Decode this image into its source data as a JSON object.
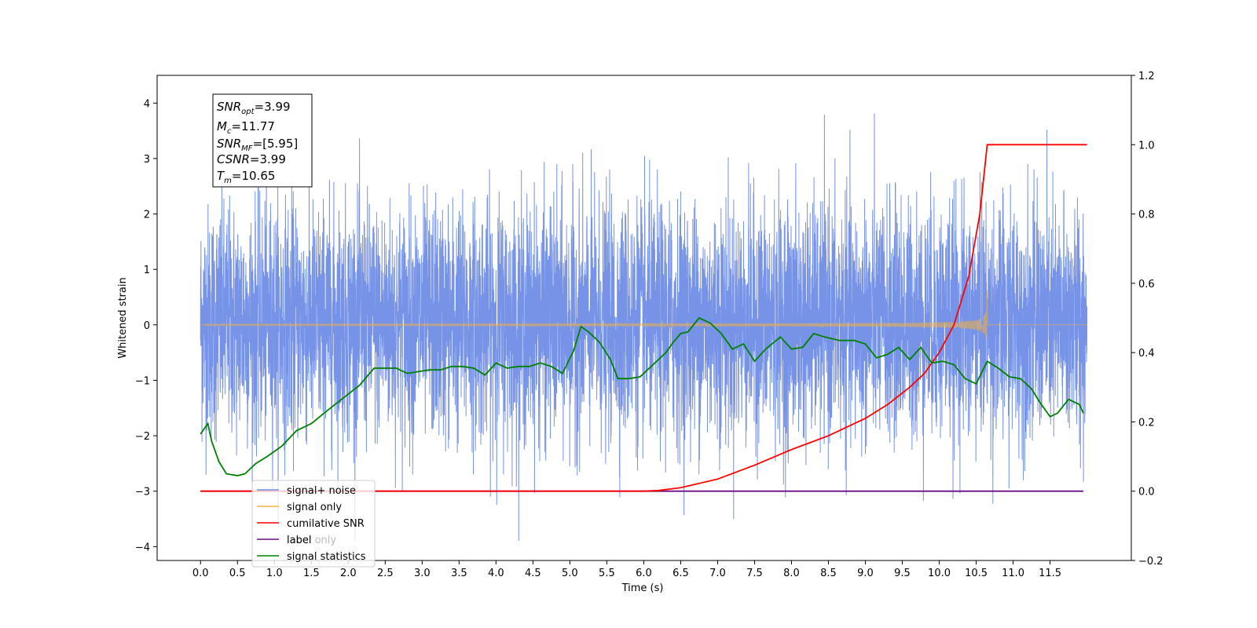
{
  "chart_data": {
    "type": "line",
    "title": "",
    "xlabel": "Time (s)",
    "ylabel_left": "Whitened strain",
    "ylabel_right": "",
    "xlim": [
      -0.5875,
      12.6
    ],
    "ylim_left": [
      -4.25,
      4.5
    ],
    "ylim_right": [
      -0.2,
      1.2
    ],
    "x_ticks": [
      0.0,
      0.5,
      1.0,
      1.5,
      2.0,
      2.5,
      3.0,
      3.5,
      4.0,
      4.5,
      5.0,
      5.5,
      6.0,
      6.5,
      7.0,
      7.5,
      8.0,
      8.5,
      9.0,
      9.5,
      10.0,
      10.5,
      11.0,
      11.5
    ],
    "x_tick_labels": [
      "0.0",
      "0.5",
      "1.0",
      "1.5",
      "2.0",
      "2.5",
      "3.0",
      "3.5",
      "4.0",
      "4.5",
      "5.0",
      "5.5",
      "6.0",
      "6.5",
      "7.0",
      "7.5",
      "8.0",
      "8.5",
      "9.0",
      "9.5",
      "10.0",
      "10.5",
      "11.0",
      "11.5"
    ],
    "y_left_ticks": [
      -4,
      -3,
      -2,
      -1,
      0,
      1,
      2,
      3,
      4
    ],
    "y_left_tick_labels": [
      "−4",
      "−3",
      "−2",
      "−1",
      "0",
      "1",
      "2",
      "3",
      "4"
    ],
    "y_right_ticks": [
      -0.2,
      0.0,
      0.2,
      0.4,
      0.6,
      0.8,
      1.0,
      1.2
    ],
    "y_right_tick_labels": [
      "−0.2",
      "0.0",
      "0.2",
      "0.4",
      "0.6",
      "0.8",
      "1.0",
      "1.2"
    ],
    "grid": false,
    "legend_position": "lower-left",
    "stats_box": {
      "snr_opt": "=3.99",
      "mc": "=11.77",
      "snr_mf": "=[5.95]",
      "csnr": "=3.99",
      "tm": "=10.65"
    },
    "series": [
      {
        "name": "signal+ noise",
        "axis": "left",
        "color": "#6f8de6",
        "x_range": [
          0.0,
          12.0
        ],
        "amplitude_range": [
          -3.9,
          4.1
        ],
        "note_values": "dense noise trace"
      },
      {
        "name": "signal only",
        "axis": "left",
        "color": "#f5b041",
        "chirp_end": 10.65,
        "peak_amplitude": 0.6
      },
      {
        "name": "cumilative SNR",
        "axis": "right",
        "color": "#ff0000",
        "x": [
          0.0,
          6.0,
          6.2,
          6.5,
          7.0,
          7.5,
          8.0,
          8.5,
          9.0,
          9.3,
          9.6,
          9.8,
          10.0,
          10.2,
          10.4,
          10.55,
          10.65,
          12.0
        ],
        "values": [
          0.0,
          0.0,
          0.002,
          0.01,
          0.035,
          0.075,
          0.12,
          0.16,
          0.21,
          0.25,
          0.3,
          0.34,
          0.4,
          0.48,
          0.62,
          0.8,
          1.0,
          1.0
        ]
      },
      {
        "name": "label",
        "axis": "right",
        "color": "#6a0d83",
        "x": [
          0.0,
          11.95
        ],
        "values": [
          0.0,
          0.0
        ]
      },
      {
        "name": "label only",
        "axis": "right",
        "color": "#cccccc",
        "x": [],
        "values": []
      },
      {
        "name": "signal statistics",
        "axis": "right",
        "color": "#008000",
        "x": [
          0.0,
          0.1,
          0.15,
          0.25,
          0.35,
          0.5,
          0.6,
          0.75,
          0.9,
          1.1,
          1.3,
          1.5,
          1.7,
          1.85,
          2.0,
          2.15,
          2.25,
          2.35,
          2.5,
          2.65,
          2.8,
          2.95,
          3.1,
          3.25,
          3.4,
          3.55,
          3.7,
          3.85,
          4.0,
          4.15,
          4.3,
          4.45,
          4.6,
          4.75,
          4.9,
          5.05,
          5.15,
          5.25,
          5.4,
          5.55,
          5.65,
          5.8,
          5.95,
          6.1,
          6.3,
          6.4,
          6.5,
          6.6,
          6.75,
          6.9,
          7.05,
          7.2,
          7.35,
          7.5,
          7.65,
          7.85,
          8.0,
          8.15,
          8.3,
          8.45,
          8.65,
          8.85,
          9.0,
          9.15,
          9.3,
          9.45,
          9.6,
          9.75,
          9.9,
          10.05,
          10.2,
          10.35,
          10.5,
          10.65,
          10.8,
          10.95,
          11.1,
          11.25,
          11.35,
          11.5,
          11.6,
          11.75,
          11.9,
          11.95
        ],
        "values": [
          0.165,
          0.195,
          0.145,
          0.085,
          0.05,
          0.045,
          0.05,
          0.08,
          0.1,
          0.13,
          0.175,
          0.195,
          0.23,
          0.255,
          0.28,
          0.305,
          0.33,
          0.355,
          0.355,
          0.355,
          0.34,
          0.345,
          0.35,
          0.35,
          0.36,
          0.36,
          0.355,
          0.335,
          0.37,
          0.355,
          0.36,
          0.36,
          0.37,
          0.36,
          0.34,
          0.405,
          0.475,
          0.46,
          0.43,
          0.38,
          0.325,
          0.325,
          0.33,
          0.36,
          0.4,
          0.43,
          0.455,
          0.46,
          0.5,
          0.485,
          0.455,
          0.41,
          0.425,
          0.375,
          0.41,
          0.445,
          0.41,
          0.415,
          0.455,
          0.445,
          0.435,
          0.435,
          0.425,
          0.385,
          0.395,
          0.415,
          0.38,
          0.415,
          0.37,
          0.375,
          0.365,
          0.325,
          0.31,
          0.375,
          0.355,
          0.33,
          0.325,
          0.295,
          0.26,
          0.215,
          0.225,
          0.265,
          0.25,
          0.225
        ]
      }
    ]
  }
}
